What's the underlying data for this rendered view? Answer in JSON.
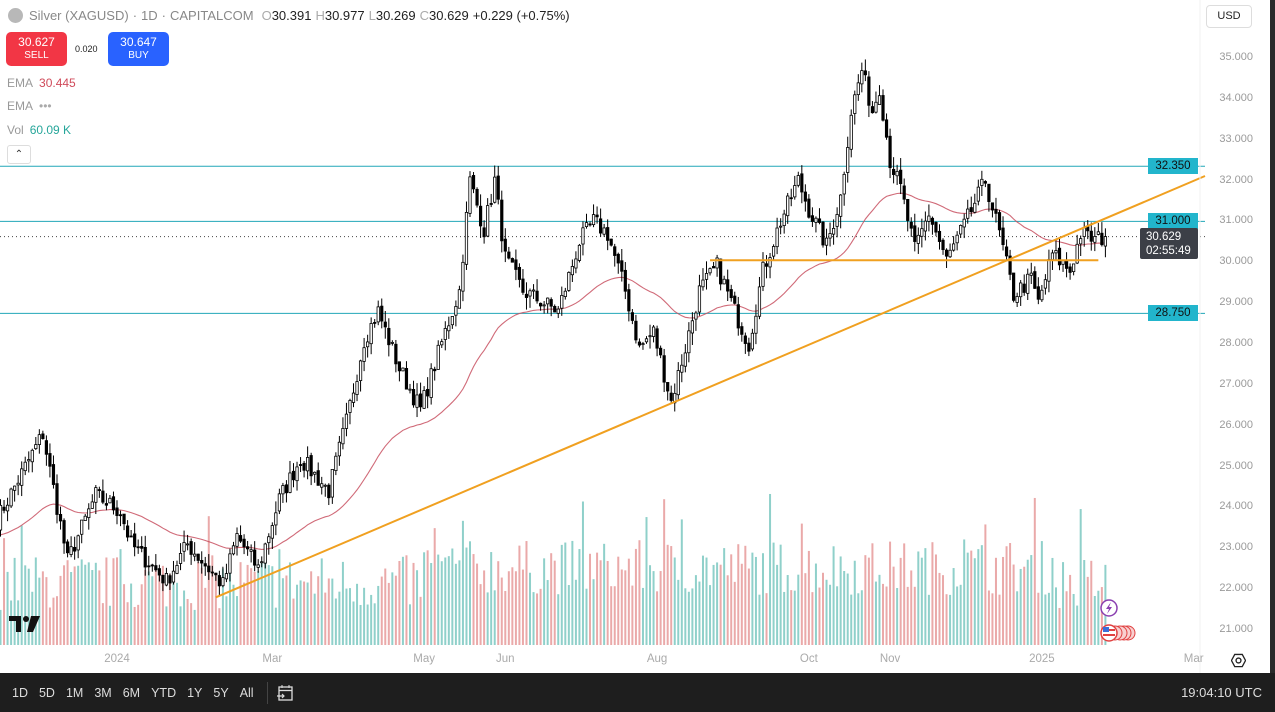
{
  "header": {
    "symbol": "Silver (XAGUSD)",
    "interval": "1D",
    "exchange": "CAPITALCOM",
    "o_label": "O",
    "open": "30.391",
    "h_label": "H",
    "high": "30.977",
    "l_label": "L",
    "low": "30.269",
    "c_label": "C",
    "close": "30.629",
    "change": "+0.229 (+0.75%)"
  },
  "trade": {
    "sell_price": "30.627",
    "sell_label": "SELL",
    "spread": "0.020",
    "buy_price": "30.647",
    "buy_label": "BUY"
  },
  "indicators": [
    {
      "name": "EMA",
      "value": "30.445",
      "color": "#d04a5a"
    },
    {
      "name": "EMA",
      "value": "•••",
      "color": "#aaaaaa"
    },
    {
      "name": "Vol",
      "value": "60.09 K",
      "color": "#26a69a"
    }
  ],
  "currency": "USD",
  "price_axis": {
    "ticks": [
      "35.000",
      "34.000",
      "33.000",
      "32.000",
      "31.000",
      "30.000",
      "29.000",
      "28.000",
      "27.000",
      "26.000",
      "25.000",
      "24.000",
      "23.000",
      "22.000",
      "21.000"
    ]
  },
  "levels": [
    {
      "price": 32.35,
      "label": "32.350"
    },
    {
      "price": 31.0,
      "label": "31.000"
    },
    {
      "price": 28.75,
      "label": "28.750"
    }
  ],
  "current_price": {
    "price": 30.629,
    "label": "30.629",
    "countdown": "02:55:49"
  },
  "time_axis": [
    {
      "label": "2024",
      "date": "2024-01-01"
    },
    {
      "label": "Mar",
      "date": "2024-03-01"
    },
    {
      "label": "May",
      "date": "2024-05-01"
    },
    {
      "label": "Jun",
      "date": "2024-06-03"
    },
    {
      "label": "Aug",
      "date": "2024-08-01"
    },
    {
      "label": "Oct",
      "date": "2024-10-01"
    },
    {
      "label": "Nov",
      "date": "2024-11-01"
    },
    {
      "label": "2025",
      "date": "2025-01-01"
    },
    {
      "label": "Mar",
      "date": "2025-03-03"
    }
  ],
  "ranges": [
    "1D",
    "5D",
    "1M",
    "3M",
    "6M",
    "YTD",
    "1Y",
    "5Y",
    "All"
  ],
  "clock": "19:04:10 UTC",
  "colors": {
    "level": "#22a7b8",
    "trend": "#f0a020",
    "ema": "#c85060",
    "vol_up": "#8fd0ca",
    "vol_down": "#eaa9a9"
  },
  "chart_data": {
    "type": "candlestick",
    "symbol": "XAGUSD",
    "interval": "1D",
    "ylim": [
      21,
      35
    ],
    "close_path": [
      [
        "2023-11-14",
        23.7
      ],
      [
        "2023-12-01",
        25.8
      ],
      [
        "2023-12-12",
        22.7
      ],
      [
        "2023-12-22",
        24.3
      ],
      [
        "2024-01-02",
        23.9
      ],
      [
        "2024-01-05",
        23.1
      ],
      [
        "2024-01-19",
        22.2
      ],
      [
        "2024-01-29",
        23.1
      ],
      [
        "2024-02-12",
        22.1
      ],
      [
        "2024-02-16",
        23.3
      ],
      [
        "2024-02-26",
        22.5
      ],
      [
        "2024-03-05",
        24.2
      ],
      [
        "2024-03-13",
        25.2
      ],
      [
        "2024-03-25",
        24.4
      ],
      [
        "2024-04-01",
        26.1
      ],
      [
        "2024-04-08",
        28.1
      ],
      [
        "2024-04-12",
        28.8
      ],
      [
        "2024-04-22",
        27.4
      ],
      [
        "2024-04-30",
        26.4
      ],
      [
        "2024-05-09",
        28.3
      ],
      [
        "2024-05-15",
        29.3
      ],
      [
        "2024-05-20",
        32.0
      ],
      [
        "2024-05-24",
        30.8
      ],
      [
        "2024-05-29",
        32.0
      ],
      [
        "2024-06-03",
        30.1
      ],
      [
        "2024-06-10",
        29.3
      ],
      [
        "2024-06-14",
        29.1
      ],
      [
        "2024-06-24",
        28.8
      ],
      [
        "2024-07-02",
        30.5
      ],
      [
        "2024-07-08",
        31.0
      ],
      [
        "2024-07-12",
        30.7
      ],
      [
        "2024-07-19",
        29.3
      ],
      [
        "2024-07-25",
        27.9
      ],
      [
        "2024-07-31",
        28.3
      ],
      [
        "2024-08-07",
        26.6
      ],
      [
        "2024-08-13",
        27.9
      ],
      [
        "2024-08-19",
        29.3
      ],
      [
        "2024-08-26",
        29.9
      ],
      [
        "2024-09-03",
        28.6
      ],
      [
        "2024-09-06",
        28.0
      ],
      [
        "2024-09-12",
        29.8
      ],
      [
        "2024-09-19",
        31.0
      ],
      [
        "2024-09-26",
        32.0
      ],
      [
        "2024-10-01",
        31.3
      ],
      [
        "2024-10-08",
        30.4
      ],
      [
        "2024-10-14",
        31.6
      ],
      [
        "2024-10-17",
        33.7
      ],
      [
        "2024-10-22",
        34.7
      ],
      [
        "2024-10-25",
        33.7
      ],
      [
        "2024-10-29",
        34.3
      ],
      [
        "2024-11-01",
        32.5
      ],
      [
        "2024-11-06",
        31.8
      ],
      [
        "2024-11-12",
        30.3
      ],
      [
        "2024-11-18",
        31.2
      ],
      [
        "2024-11-25",
        30.05
      ],
      [
        "2024-12-02",
        30.9
      ],
      [
        "2024-12-10",
        32.0
      ],
      [
        "2024-12-16",
        30.7
      ],
      [
        "2024-12-20",
        29.2
      ],
      [
        "2024-12-27",
        29.6
      ],
      [
        "2024-12-31",
        29.0
      ],
      [
        "2025-01-06",
        30.2
      ],
      [
        "2025-01-13",
        29.8
      ],
      [
        "2025-01-16",
        30.7
      ],
      [
        "2025-01-22",
        30.55
      ],
      [
        "2025-01-27",
        30.629
      ]
    ],
    "trendlines": [
      {
        "from": [
          "2024-02-08",
          21.8
        ],
        "to": [
          "2025-01-23",
          31.0
        ],
        "extend_right": true
      },
      {
        "from": [
          "2024-08-22",
          30.05
        ],
        "to": [
          "2025-01-23",
          30.05
        ],
        "extend_right": false
      }
    ],
    "ema": {
      "label": "EMA",
      "last": 30.445
    },
    "volume": {
      "label": "Vol",
      "last": "60.09 K"
    }
  }
}
